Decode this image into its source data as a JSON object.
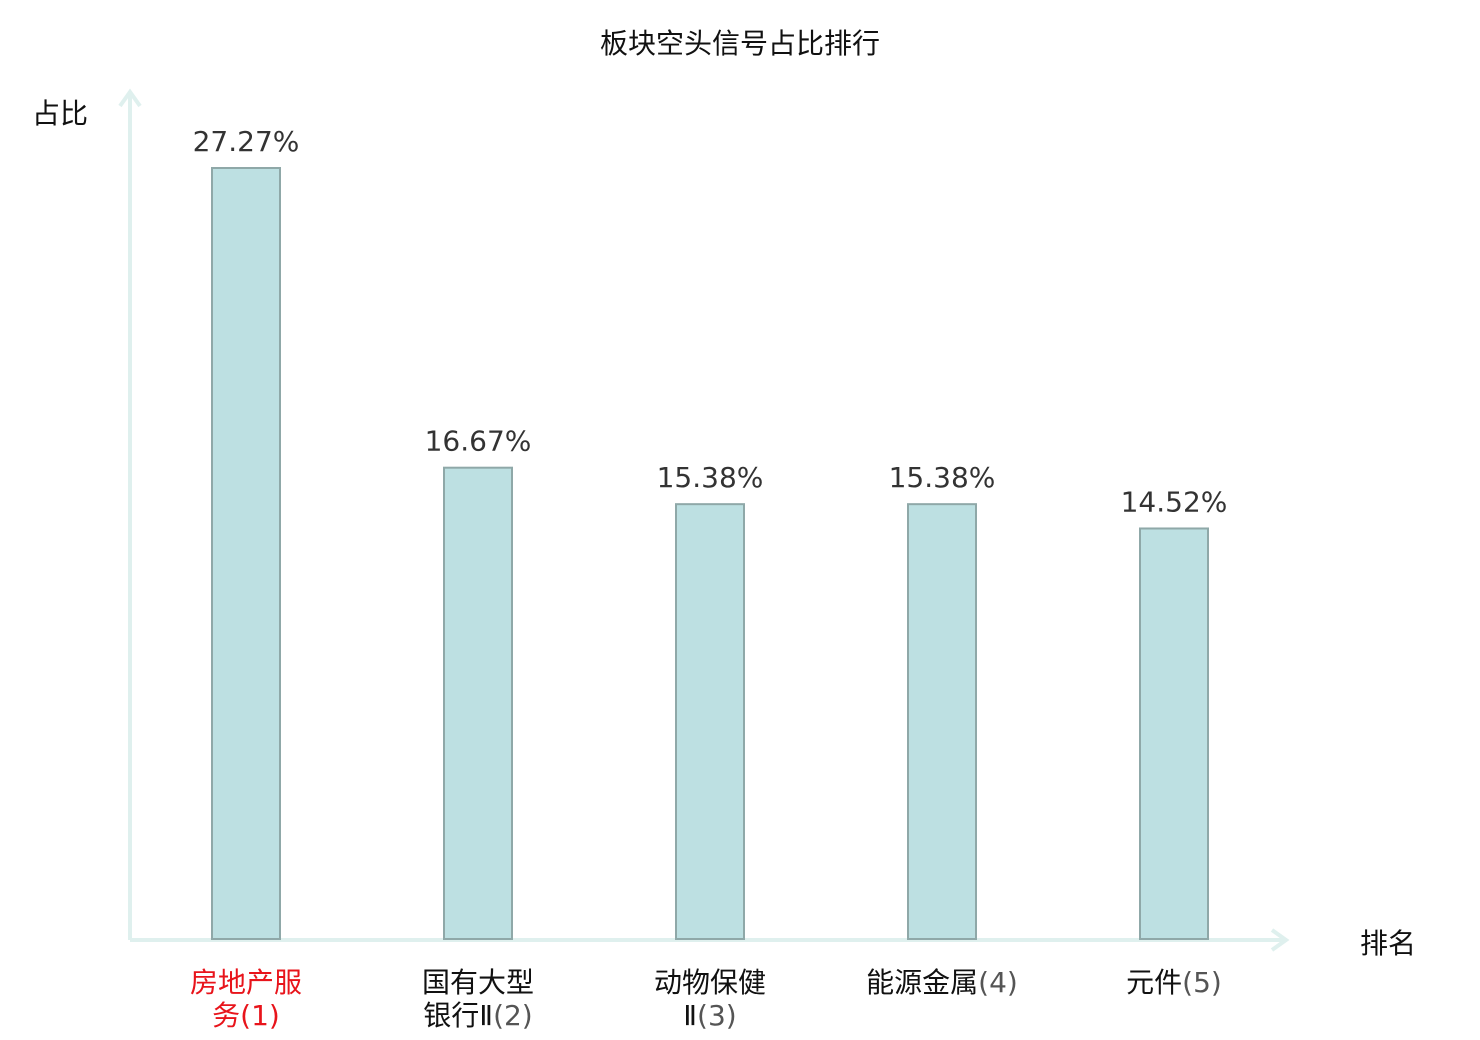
{
  "chart_data": {
    "type": "bar",
    "title": "板块空头信号占比排行",
    "ylabel": "占比",
    "xlabel": "排名",
    "categories": [
      {
        "name": "房地产服务",
        "rank": "(1)",
        "line1": "房地产服",
        "line2": "务",
        "highlight": true
      },
      {
        "name": "国有大型银行Ⅱ",
        "rank": "(2)",
        "line1": "国有大型",
        "line2": "银行Ⅱ",
        "highlight": false
      },
      {
        "name": "动物保健Ⅱ",
        "rank": "(3)",
        "line1": "动物保健",
        "line2": "Ⅱ",
        "highlight": false
      },
      {
        "name": "能源金属",
        "rank": "(4)",
        "line1": "能源金属",
        "line2": "",
        "highlight": false
      },
      {
        "name": "元件",
        "rank": "(5)",
        "line1": "元件",
        "line2": "",
        "highlight": false
      }
    ],
    "values": [
      27.27,
      16.67,
      15.38,
      15.38,
      14.52
    ],
    "value_labels": [
      "27.27%",
      "16.67%",
      "15.38%",
      "15.38%",
      "14.52%"
    ],
    "ylim": [
      0,
      30
    ],
    "grid": false,
    "colors": {
      "bar_fill": "#bde0e2",
      "bar_stroke": "#8fa8a8",
      "axis": "#dff0ee",
      "highlight": "#e8141b"
    }
  }
}
